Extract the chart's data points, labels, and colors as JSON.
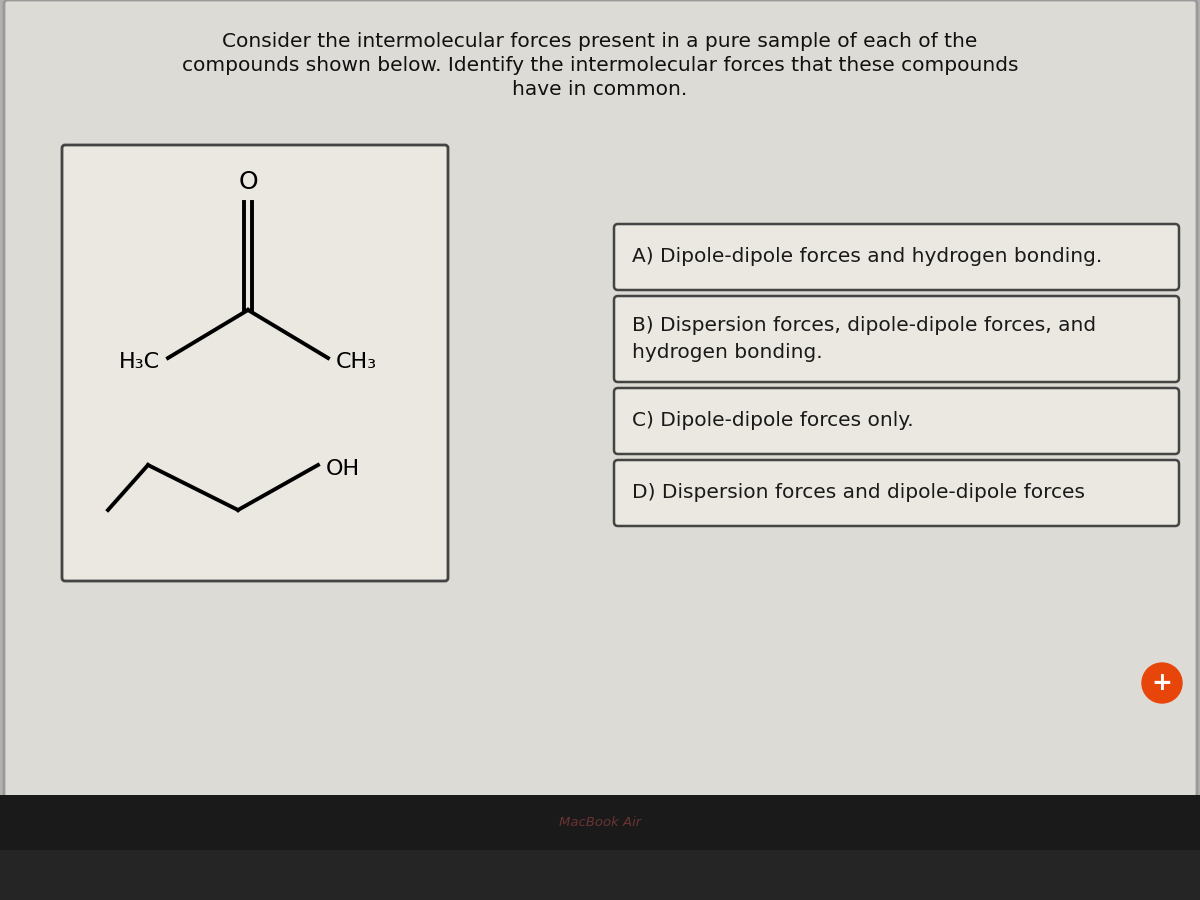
{
  "title_line1": "Consider the intermolecular forces present in a pure sample of each of the",
  "title_line2": "compounds shown below. Identify the intermolecular forces that these compounds",
  "title_line3": "have in common.",
  "answer_A": "A) Dipole-dipole forces and hydrogen bonding.",
  "answer_B_line1": "B) Dispersion forces, dipole-dipole forces, and",
  "answer_B_line2": "hydrogen bonding.",
  "answer_C": "C) Dipole-dipole forces only.",
  "answer_D": "D) Dispersion forces and dipole-dipole forces",
  "bg_color": "#b0b0b0",
  "screen_bg": "#dddbd5",
  "box_bg": "#eae8e0",
  "answer_box_bg": "#eae8e0",
  "box_border": "#444444",
  "text_color": "#111111",
  "answer_text_color": "#1a1a1a",
  "macbook_label": "MacBook Air",
  "macbook_bar_color": "#1a1a1a",
  "title_fontsize": 14.5,
  "answer_fontsize": 14.5,
  "bottom_keyboard_color": "#252525"
}
